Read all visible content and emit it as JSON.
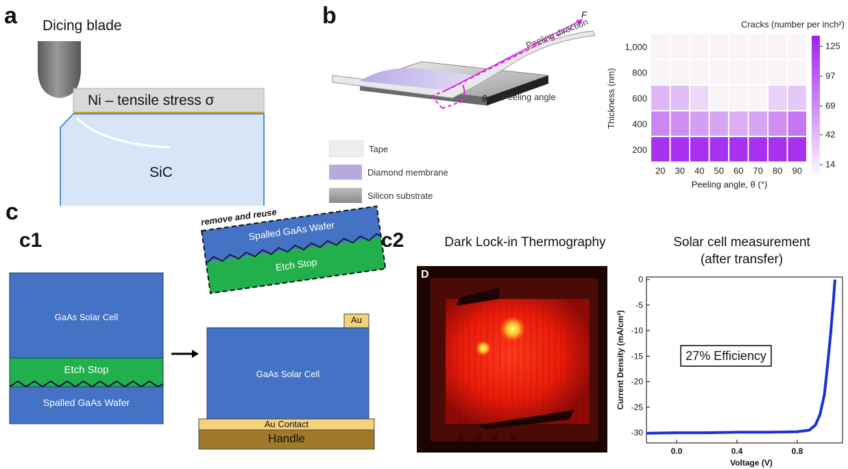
{
  "panel_a": {
    "letter": "a",
    "blade_label": "Dicing blade",
    "stress_label": "Ni – tensile stress σ",
    "substrate_label": "SiC"
  },
  "panel_b": {
    "letter": "b",
    "force_label": "F",
    "peeling_direction_label": "Peeling direction",
    "theta_label": "θ",
    "peeling_angle_label": "Peeling angle",
    "legend": [
      {
        "label": "Tape",
        "color": "#eeeeee"
      },
      {
        "label": "Diamond membrane",
        "color": "#b8a8e0"
      },
      {
        "label": "Silicon substrate",
        "color": "#9a9a9a"
      }
    ]
  },
  "chart_data": [
    {
      "type": "heatmap",
      "title": "Cracks (number per inch²)",
      "xlabel": "Peeling angle, θ (°)",
      "ylabel": "Thickness (nm)",
      "x": [
        20,
        30,
        40,
        50,
        60,
        70,
        80,
        90
      ],
      "y": [
        1000,
        800,
        600,
        400,
        200
      ],
      "x_tick_labels": [
        "20",
        "30",
        "40",
        "50",
        "60",
        "70",
        "80",
        "90"
      ],
      "y_tick_labels": [
        "1,000",
        "800",
        "600",
        "400",
        "200"
      ],
      "values": [
        [
          0,
          0,
          0,
          0,
          0,
          0,
          0,
          0
        ],
        [
          0,
          0,
          0,
          0,
          0,
          0,
          0,
          0
        ],
        [
          40,
          35,
          18,
          0,
          0,
          0,
          22,
          28
        ],
        [
          70,
          65,
          55,
          50,
          45,
          50,
          65,
          80
        ],
        [
          125,
          125,
          125,
          125,
          125,
          125,
          125,
          125
        ]
      ],
      "colorbar_ticks": [
        "125",
        "97",
        "69",
        "42",
        "14"
      ],
      "colorbar_tick_values": [
        125,
        97,
        69,
        42,
        14
      ],
      "vmin": 0,
      "vmax": 135,
      "color_low": "#f8f4f8",
      "color_high": "#a020f0"
    },
    {
      "type": "line",
      "title": "Solar cell measurement (after transfer)",
      "xlabel": "Voltage (V)",
      "ylabel": "Current Density (mA/cm²)",
      "xlim": [
        -0.2,
        1.1
      ],
      "ylim": [
        -32,
        0.5
      ],
      "x_tick_labels": [
        "0.0",
        "0.4",
        "0.8"
      ],
      "x_ticks": [
        0.0,
        0.4,
        0.8
      ],
      "y_tick_labels": [
        "0",
        "-5",
        "-10",
        "-15",
        "-20",
        "-25",
        "-30"
      ],
      "y_ticks": [
        0,
        -5,
        -10,
        -15,
        -20,
        -25,
        -30
      ],
      "annotation": "27% Efficiency",
      "series": [
        {
          "color": "#1a2fd6",
          "x": [
            -0.2,
            0.0,
            0.2,
            0.4,
            0.6,
            0.8,
            0.88,
            0.92,
            0.95,
            0.98,
            1.0,
            1.02,
            1.04,
            1.05
          ],
          "y": [
            -30.1,
            -30.0,
            -30.0,
            -29.9,
            -29.9,
            -29.8,
            -29.5,
            -28.5,
            -26.5,
            -22.5,
            -17.0,
            -11.0,
            -4.0,
            0.0
          ]
        }
      ]
    }
  ],
  "panel_c": {
    "letter": "c",
    "c1": {
      "letter": "c1",
      "left_stack": {
        "solar_cell": "GaAs Solar Cell",
        "etch_stop": "Etch Stop",
        "wafer": "Spalled GaAs Wafer"
      },
      "removed_stack": {
        "caption": "remove and reuse",
        "wafer": "Spalled GaAs Wafer",
        "etch_stop": "Etch Stop"
      },
      "right_stack": {
        "au_pad": "Au",
        "solar_cell": "GaAs Solar Cell",
        "au_contact": "Au Contact",
        "handle": "Handle"
      },
      "colors": {
        "gaas": "#4472c4",
        "etch": "#21b04b",
        "au": "#f5d27a",
        "handle": "#a07a28"
      }
    },
    "c2": {
      "letter": "c2",
      "thermo_title": "Dark Lock-in Thermography",
      "thermo_corner_label": "D",
      "iv_title_line1": "Solar cell measurement",
      "iv_title_line2": "(after transfer)"
    }
  }
}
